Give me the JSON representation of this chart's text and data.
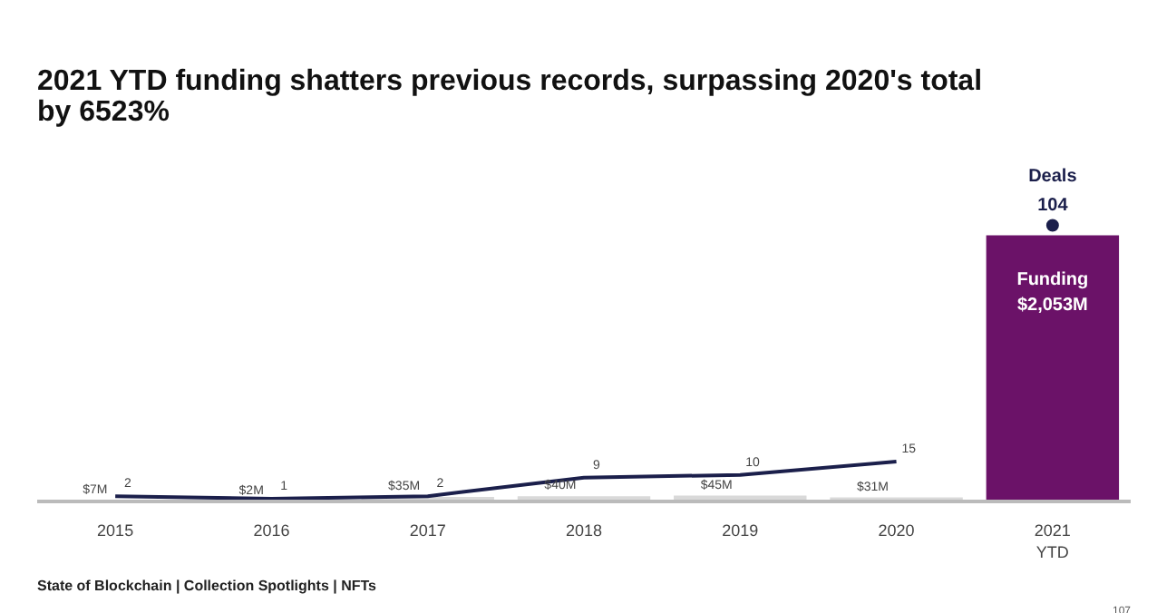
{
  "chart_data": {
    "type": "bar",
    "title": "2021 YTD funding shatters previous records, surpassing 2020's total by 6523%",
    "categories": [
      "2015",
      "2016",
      "2017",
      "2018",
      "2019",
      "2020",
      "2021\nYTD"
    ],
    "series": [
      {
        "name": "Funding",
        "colors": [
          "#d9d9d9",
          "#d9d9d9",
          "#d9d9d9",
          "#d9d9d9",
          "#d9d9d9",
          "#d9d9d9",
          "#6b1268"
        ],
        "values": [
          7,
          2,
          35,
          40,
          45,
          31,
          2053
        ],
        "value_labels": [
          "$7M",
          "$2M",
          "$35M",
          "$40M",
          "$45M",
          "$31M",
          "$2,053M"
        ]
      },
      {
        "type": "line",
        "axis": "y2",
        "color": "#1b1f4b",
        "values": [
          2,
          1,
          2,
          9,
          10,
          15,
          null
        ],
        "data_labels": true
      },
      {
        "name": "Deals",
        "type": "scatter",
        "axis": "y2",
        "color": "#1b1f4b",
        "marker": "circle",
        "values": [
          null,
          null,
          null,
          null,
          null,
          null,
          104
        ],
        "data_labels": true
      }
    ],
    "grid": false,
    "tick_labels": "x",
    "annotations": [
      "State of Blockchain | Collection Spotlights | NFTs",
      "107"
    ]
  }
}
